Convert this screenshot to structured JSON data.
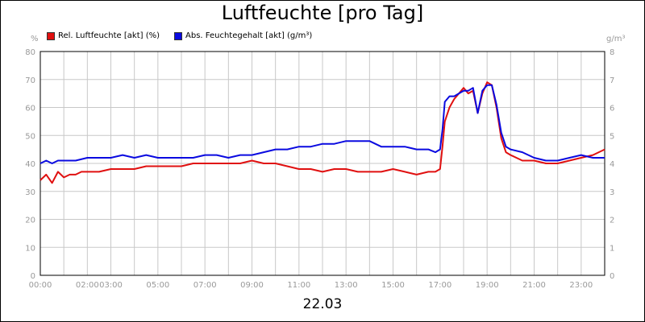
{
  "chart_data": {
    "type": "line",
    "title": "Luftfeuchte [pro Tag]",
    "xlabel": "22.03",
    "y_left_unit": "%",
    "y_right_unit": "g/m³",
    "ylim_left": [
      0,
      80
    ],
    "ylim_right": [
      0,
      8
    ],
    "y_left_ticks": [
      "0",
      "10",
      "20",
      "30",
      "40",
      "50",
      "60",
      "70",
      "80"
    ],
    "y_right_ticks": [
      "0",
      "1",
      "2",
      "3",
      "4",
      "5",
      "6",
      "7",
      "8"
    ],
    "x_ticks": [
      {
        "x": 0,
        "label": "00:00"
      },
      {
        "x": 2,
        "label": "02:00"
      },
      {
        "x": 3,
        "label": "03:00"
      },
      {
        "x": 5,
        "label": "05:00"
      },
      {
        "x": 7,
        "label": "07:00"
      },
      {
        "x": 9,
        "label": "09:00"
      },
      {
        "x": 11,
        "label": "11:00"
      },
      {
        "x": 13,
        "label": "13:00"
      },
      {
        "x": 15,
        "label": "15:00"
      },
      {
        "x": 17,
        "label": "17:00"
      },
      {
        "x": 19,
        "label": "19:00"
      },
      {
        "x": 21,
        "label": "21:00"
      },
      {
        "x": 23,
        "label": "23:00"
      }
    ],
    "xlim": [
      0,
      24
    ],
    "grid": true,
    "legend_position": "top-left",
    "series": [
      {
        "name": "Rel. Luftfeuchte [akt] (%)",
        "color": "#e01010",
        "axis": "left",
        "x": [
          0,
          0.25,
          0.5,
          0.75,
          1,
          1.25,
          1.5,
          1.75,
          2,
          2.5,
          3,
          3.5,
          4,
          4.5,
          5,
          5.5,
          6,
          6.5,
          7,
          7.5,
          8,
          8.5,
          9,
          9.5,
          10,
          10.5,
          11,
          11.5,
          12,
          12.5,
          13,
          13.5,
          14,
          14.5,
          15,
          15.5,
          16,
          16.5,
          16.8,
          17,
          17.1,
          17.2,
          17.4,
          17.6,
          17.8,
          18,
          18.2,
          18.4,
          18.6,
          18.8,
          19,
          19.2,
          19.4,
          19.6,
          19.8,
          20,
          20.5,
          21,
          21.5,
          22,
          22.5,
          23,
          23.5,
          24
        ],
        "y": [
          34,
          36,
          33,
          37,
          35,
          36,
          36,
          37,
          37,
          37,
          38,
          38,
          38,
          39,
          39,
          39,
          39,
          40,
          40,
          40,
          40,
          40,
          41,
          40,
          40,
          39,
          38,
          38,
          37,
          38,
          38,
          37,
          37,
          37,
          38,
          37,
          36,
          37,
          37,
          38,
          46,
          55,
          60,
          63,
          65,
          67,
          65,
          66,
          58,
          65,
          69,
          68,
          60,
          49,
          44,
          43,
          41,
          41,
          40,
          40,
          41,
          42,
          43,
          45
        ]
      },
      {
        "name": "Abs. Feuchtegehalt [akt] (g/m³)",
        "color": "#0a0ae0",
        "axis": "right",
        "x": [
          0,
          0.25,
          0.5,
          0.75,
          1,
          1.5,
          2,
          2.5,
          3,
          3.5,
          4,
          4.5,
          5,
          5.5,
          6,
          6.5,
          7,
          7.5,
          8,
          8.5,
          9,
          9.5,
          10,
          10.5,
          11,
          11.5,
          12,
          12.5,
          13,
          13.5,
          14,
          14.5,
          15,
          15.5,
          16,
          16.5,
          16.8,
          17,
          17.1,
          17.2,
          17.4,
          17.6,
          17.8,
          18,
          18.2,
          18.4,
          18.6,
          18.8,
          19,
          19.2,
          19.4,
          19.6,
          19.8,
          20,
          20.5,
          21,
          21.5,
          22,
          22.5,
          23,
          23.5,
          24
        ],
        "y": [
          4.0,
          4.1,
          4.0,
          4.1,
          4.1,
          4.1,
          4.2,
          4.2,
          4.2,
          4.3,
          4.2,
          4.3,
          4.2,
          4.2,
          4.2,
          4.2,
          4.3,
          4.3,
          4.2,
          4.3,
          4.3,
          4.4,
          4.5,
          4.5,
          4.6,
          4.6,
          4.7,
          4.7,
          4.8,
          4.8,
          4.8,
          4.6,
          4.6,
          4.6,
          4.5,
          4.5,
          4.4,
          4.5,
          5.2,
          6.2,
          6.4,
          6.4,
          6.5,
          6.6,
          6.6,
          6.7,
          5.8,
          6.6,
          6.8,
          6.8,
          6.1,
          5.1,
          4.6,
          4.5,
          4.4,
          4.2,
          4.1,
          4.1,
          4.2,
          4.3,
          4.2,
          4.2
        ]
      }
    ]
  }
}
